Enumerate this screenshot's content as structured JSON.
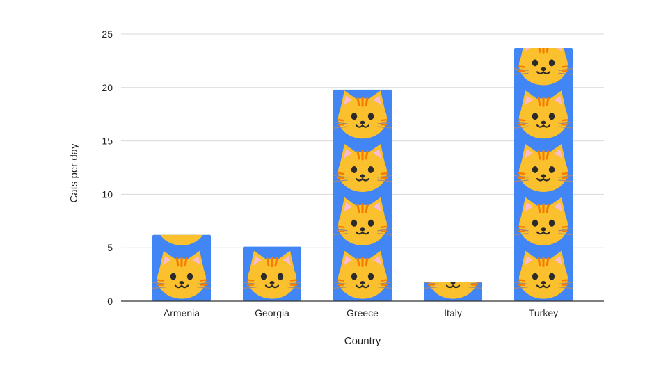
{
  "chart_data": {
    "type": "bar",
    "title": "",
    "xlabel": "Country",
    "ylabel": "Cats per day",
    "categories": [
      "Armenia",
      "Georgia",
      "Greece",
      "Italy",
      "Turkey"
    ],
    "values": [
      6.2,
      5.1,
      19.8,
      1.8,
      23.7
    ],
    "ylim": [
      0,
      25
    ],
    "yticks": [
      "0",
      "5",
      "10",
      "15",
      "20",
      "25"
    ],
    "grid": true,
    "legend": "none",
    "bar_color": "#4285F4",
    "pictogram": "cat-face",
    "pictogram_unit": 5
  },
  "colors": {
    "grid": "#d9d9d9",
    "axis": "#333333",
    "cat_fill": "#FBC02D",
    "cat_stripe": "#F57C00",
    "cat_ear_inner": "#F8BBD0",
    "cat_features": "#2b2b2b",
    "whisker": "#A1887F"
  }
}
